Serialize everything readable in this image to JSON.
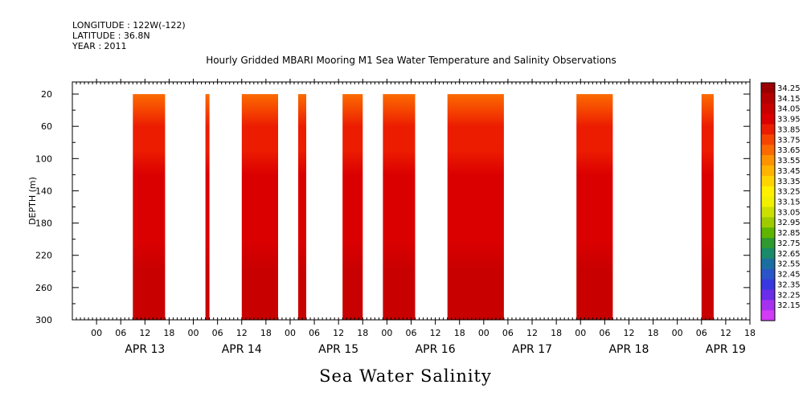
{
  "header": {
    "longitude": "LONGITUDE : 122W(-122)",
    "latitude": "LATITUDE : 36.8N",
    "year": "YEAR : 2011"
  },
  "colors": {
    "frame": "#000000",
    "background": "#ffffff"
  },
  "chart_data": {
    "type": "heatmap",
    "title": "Hourly Gridded MBARI Mooring M1 Sea Water Temperature and Salinity Observations",
    "variable_label": "Sea Water Salinity",
    "ylabel": "DEPTH (m)",
    "ylim": [
      300,
      5
    ],
    "y_inverted": true,
    "y_ticks": [
      20,
      60,
      100,
      140,
      180,
      220,
      260,
      300
    ],
    "x_start": "2011-04-12 18:00",
    "x_end": "2011-04-19 18:00",
    "x_tick_labels": [
      "00",
      "06",
      "12",
      "18",
      "00",
      "06",
      "12",
      "18",
      "00",
      "06",
      "12",
      "18",
      "00",
      "06",
      "12",
      "18",
      "00",
      "06",
      "12",
      "18",
      "00",
      "06",
      "12",
      "18",
      "00",
      "06",
      "12",
      "18"
    ],
    "day_labels": [
      "APR 13",
      "APR 14",
      "APR 15",
      "APR 16",
      "APR 17",
      "APR 18",
      "APR 19"
    ],
    "data_depth_range": [
      20,
      300
    ],
    "data_segments": [
      {
        "start": "2011-04-13 09:00",
        "end": "2011-04-13 17:00"
      },
      {
        "start": "2011-04-14 03:00",
        "end": "2011-04-14 04:00"
      },
      {
        "start": "2011-04-14 12:00",
        "end": "2011-04-14 21:00"
      },
      {
        "start": "2011-04-15 02:00",
        "end": "2011-04-15 04:00"
      },
      {
        "start": "2011-04-15 13:00",
        "end": "2011-04-15 18:00"
      },
      {
        "start": "2011-04-15 23:00",
        "end": "2011-04-16 07:00"
      },
      {
        "start": "2011-04-16 15:00",
        "end": "2011-04-17 05:00"
      },
      {
        "start": "2011-04-17 23:00",
        "end": "2011-04-18 08:00"
      },
      {
        "start": "2011-04-19 06:00",
        "end": "2011-04-19 09:00"
      }
    ],
    "salinity_profile": [
      {
        "depth": 20,
        "value": 33.65
      },
      {
        "depth": 40,
        "value": 33.8
      },
      {
        "depth": 60,
        "value": 33.85
      },
      {
        "depth": 90,
        "value": 33.9
      },
      {
        "depth": 120,
        "value": 33.95
      },
      {
        "depth": 160,
        "value": 34.0
      },
      {
        "depth": 200,
        "value": 34.05
      },
      {
        "depth": 240,
        "value": 34.1
      },
      {
        "depth": 250,
        "value": 34.15
      },
      {
        "depth": 265,
        "value": 34.1
      },
      {
        "depth": 300,
        "value": 34.1
      }
    ],
    "colorbar": {
      "levels": [
        "34.25",
        "34.15",
        "34.05",
        "33.95",
        "33.85",
        "33.75",
        "33.65",
        "33.55",
        "33.45",
        "33.35",
        "33.25",
        "33.15",
        "33.05",
        "32.95",
        "32.85",
        "32.75",
        "32.65",
        "32.55",
        "32.45",
        "32.35",
        "32.25",
        "32.15"
      ],
      "colors": [
        "#9a0000",
        "#b50000",
        "#c80000",
        "#db0000",
        "#ec1c00",
        "#f54500",
        "#fb6a00",
        "#fd9300",
        "#ffb400",
        "#ffd400",
        "#fff000",
        "#f0f000",
        "#cbe000",
        "#9ecb00",
        "#5fb400",
        "#2f9a2f",
        "#1a8a6a",
        "#1a6fa0",
        "#2a55c8",
        "#3838e0",
        "#6a2de8",
        "#a630f0",
        "#d23cf5"
      ]
    }
  }
}
